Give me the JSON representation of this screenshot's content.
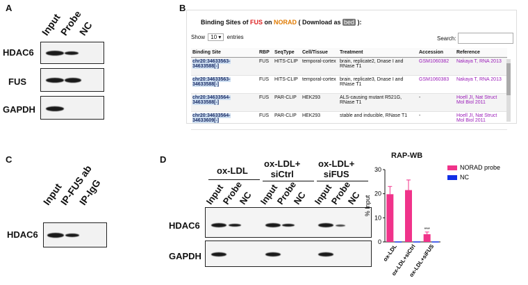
{
  "panels": {
    "A": {
      "label": "A",
      "lanes": [
        "Input",
        "Probe",
        "NC"
      ],
      "rows": [
        "HDAC6",
        "FUS",
        "GAPDH"
      ]
    },
    "B": {
      "label": "B",
      "title_prefix": "Binding Sites of ",
      "title_rbp": "FUS",
      "title_mid": " on ",
      "title_gene": "NORAD",
      "title_dl": " ( Download as ",
      "title_dl_badge": "bed",
      "title_suffix": " ):",
      "show_label": "Show",
      "show_value": "10",
      "entries_label": "entries",
      "search_label": "Search:",
      "columns": [
        "Binding Site",
        "RBP",
        "SeqType",
        "Cell/Tissue",
        "Treatment",
        "Accession",
        "Reference"
      ],
      "rows": [
        {
          "site": "chr20:34633563-34633588[-]",
          "rbp": "FUS",
          "seqtype": "HITS-CLIP",
          "cell": "temporal-cortex",
          "treatment": "brain, replicate2, Dnase I and RNase T1",
          "accession": "GSM1060382",
          "reference": "Nakaya T, RNA 2013"
        },
        {
          "site": "chr20:34633563-34633588[-]",
          "rbp": "FUS",
          "seqtype": "HITS-CLIP",
          "cell": "temporal-cortex",
          "treatment": "brain, replicate3, Dnase I and RNase T1",
          "accession": "GSM1060383",
          "reference": "Nakaya T, RNA 2013"
        },
        {
          "site": "chr20:34633564-34633588[-]",
          "rbp": "FUS",
          "seqtype": "PAR-CLIP",
          "cell": "HEK293",
          "treatment": "ALS-causing mutant R521G, RNase T1",
          "accession": "-",
          "reference": "Hoell JI, Nat Struct Mol Biol 2011"
        },
        {
          "site": "chr20:34633564-34633609[-]",
          "rbp": "FUS",
          "seqtype": "PAR-CLIP",
          "cell": "HEK293",
          "treatment": "stable and inducible, RNase T1",
          "accession": "-",
          "reference": "Hoell JI, Nat Struct Mol Biol 2011"
        }
      ]
    },
    "C": {
      "label": "C",
      "lanes": [
        "Input",
        "IP-FUS ab",
        "IP-IgG"
      ],
      "rows": [
        "HDAC6"
      ]
    },
    "D": {
      "label": "D",
      "groups": [
        "ox-LDL",
        "ox-LDL+\nsiCtrl",
        "ox-LDL+\nsiFUS"
      ],
      "lanes": [
        "Input",
        "Probe",
        "NC"
      ],
      "rows": [
        "HDAC6",
        "GAPDH"
      ]
    }
  },
  "chart_data": {
    "type": "bar",
    "title": "RAP-WB",
    "ylabel": "% Input",
    "xlabel": "",
    "ylim": [
      0,
      30
    ],
    "yticks": [
      0,
      10,
      20,
      30
    ],
    "categories": [
      "ox-LDL",
      "ox-LDL+siCtrl",
      "ox-LDL+siFUS"
    ],
    "series": [
      {
        "name": "NORAD probe",
        "color": "#f0338a",
        "values": [
          19.8,
          21.5,
          3.2
        ],
        "errors": [
          3.2,
          4.2,
          0.9
        ]
      },
      {
        "name": "NC",
        "color": "#1230e6",
        "values": [
          0.2,
          0.2,
          0.2
        ],
        "errors": [
          0,
          0,
          0
        ]
      }
    ],
    "annotations": [
      {
        "category": "ox-LDL+siFUS",
        "text": "***"
      }
    ],
    "legend": "right"
  }
}
